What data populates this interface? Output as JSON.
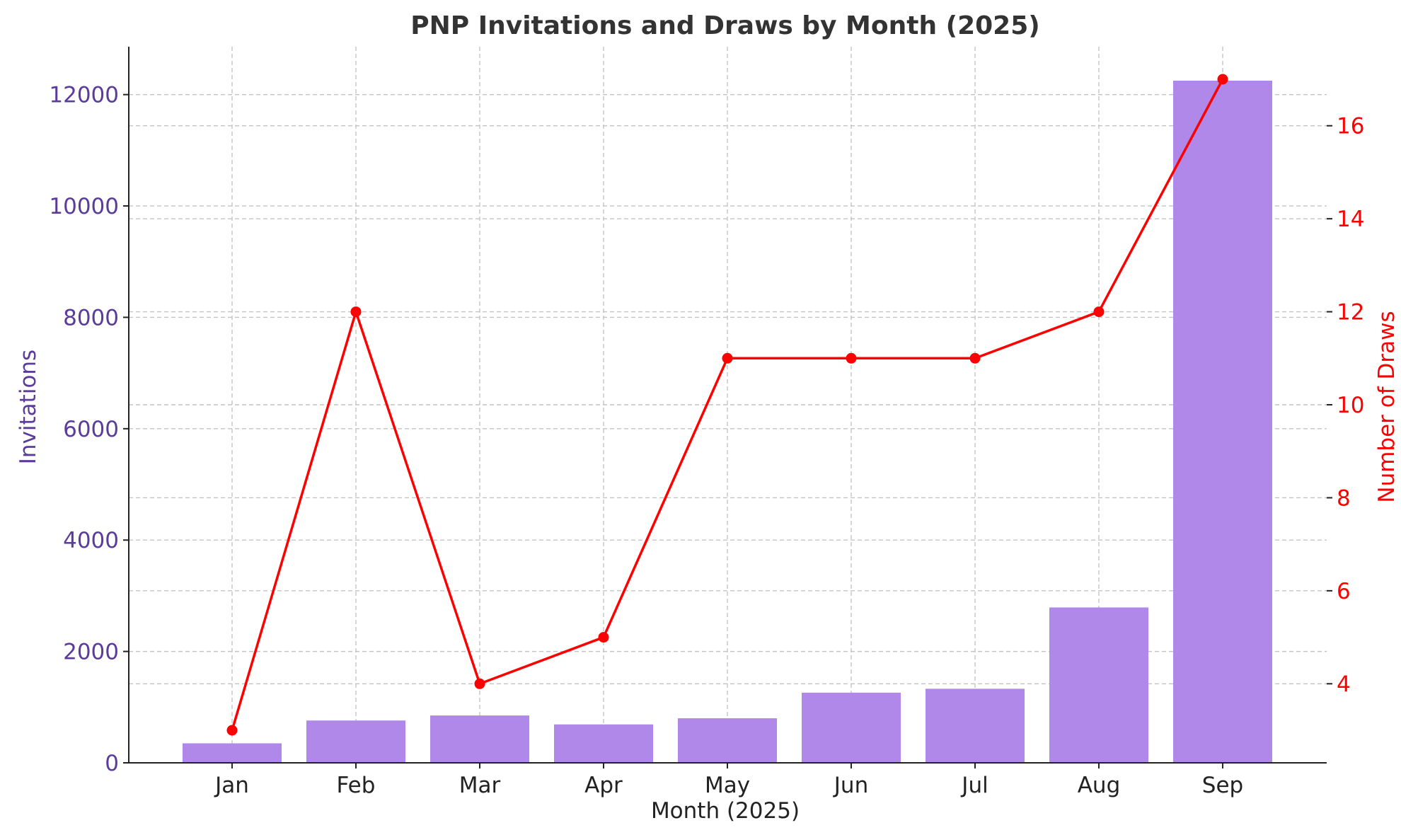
{
  "chart_data": {
    "type": "bar",
    "title": "PNP Invitations and Draws by Month (2025)",
    "xlabel": "Month (2025)",
    "categories": [
      "Jan",
      "Feb",
      "Mar",
      "Apr",
      "May",
      "Jun",
      "Jul",
      "Aug",
      "Sep"
    ],
    "series": [
      {
        "name": "Invitations",
        "chart_type": "bar",
        "axis": "left",
        "color": "#b088ea",
        "values": [
          350,
          760,
          850,
          690,
          800,
          1260,
          1330,
          2790,
          12250
        ]
      },
      {
        "name": "Number of Draws",
        "chart_type": "line",
        "axis": "right",
        "color": "#ff0000",
        "values": [
          3,
          12,
          4,
          5,
          11,
          11,
          11,
          12,
          17
        ]
      }
    ],
    "y_left": {
      "label": "Invitations",
      "color": "#5b3c9c",
      "ylim": [
        0,
        12860
      ],
      "ticks": [
        0,
        2000,
        4000,
        6000,
        8000,
        10000,
        12000
      ]
    },
    "y_right": {
      "label": "Number of Draws",
      "color": "#ff0000",
      "ylim": [
        2.3,
        17.7
      ],
      "ticks": [
        4,
        6,
        8,
        10,
        12,
        14,
        16
      ]
    },
    "grid": true
  }
}
